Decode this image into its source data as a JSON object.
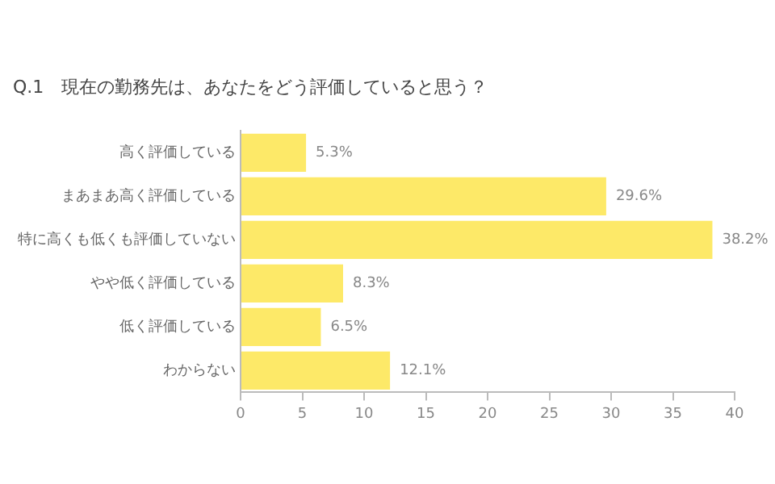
{
  "chart_data": {
    "type": "bar",
    "orientation": "horizontal",
    "title": "Q.1　現在の勤務先は、あなたをどう評価していると思う？",
    "categories": [
      "高く評価している",
      "まあまあ高く評価している",
      "特に高くも低くも評価していない",
      "やや低く評価している",
      "低く評価している",
      "わからない"
    ],
    "values": [
      5.3,
      29.6,
      38.2,
      8.3,
      6.5,
      12.1
    ],
    "value_labels": [
      "5.3%",
      "29.6%",
      "38.2%",
      "8.3%",
      "6.5%",
      "12.1%"
    ],
    "color": "#fde968",
    "xlim": [
      0,
      40
    ],
    "xticks": [
      0,
      5,
      10,
      15,
      20,
      25,
      30,
      35,
      40
    ],
    "grid": false,
    "legend": false
  }
}
